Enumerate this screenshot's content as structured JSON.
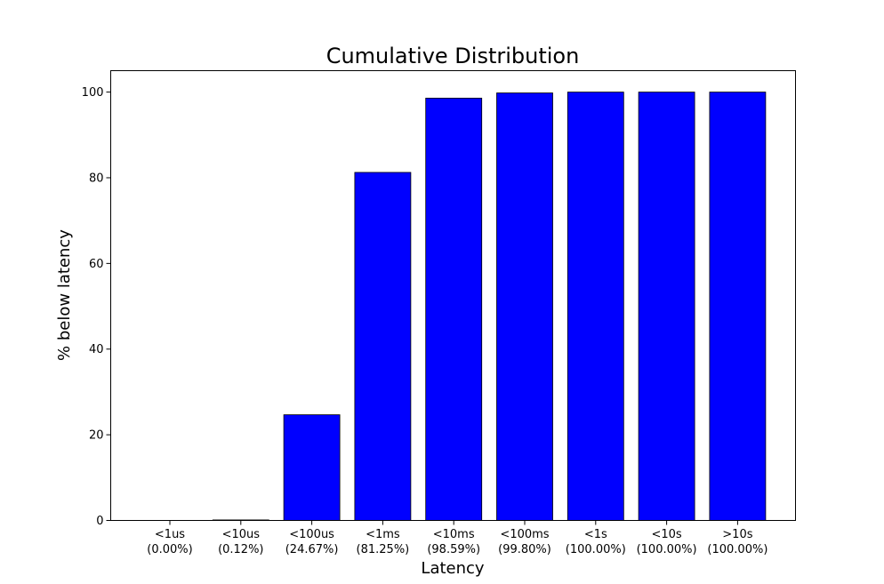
{
  "chart_data": {
    "type": "bar",
    "title": "Cumulative Distribution",
    "xlabel": "Latency",
    "ylabel": "% below latency",
    "categories": [
      "<1us",
      "<10us",
      "<100us",
      "<1ms",
      "<10ms",
      "<100ms",
      "<1s",
      "<10s",
      ">10s"
    ],
    "category_sublabels": [
      "(0.00%)",
      "(0.12%)",
      "(24.67%)",
      "(81.25%)",
      "(98.59%)",
      "(99.80%)",
      "(100.00%)",
      "(100.00%)",
      "(100.00%)"
    ],
    "values": [
      0.0,
      0.12,
      24.67,
      81.25,
      98.59,
      99.8,
      100.0,
      100.0,
      100.0
    ],
    "ylim": [
      0,
      105
    ],
    "yticks": [
      0,
      20,
      40,
      60,
      80,
      100
    ],
    "bar_color": "#0000ff",
    "edge_color": "#000000",
    "grid": false
  }
}
